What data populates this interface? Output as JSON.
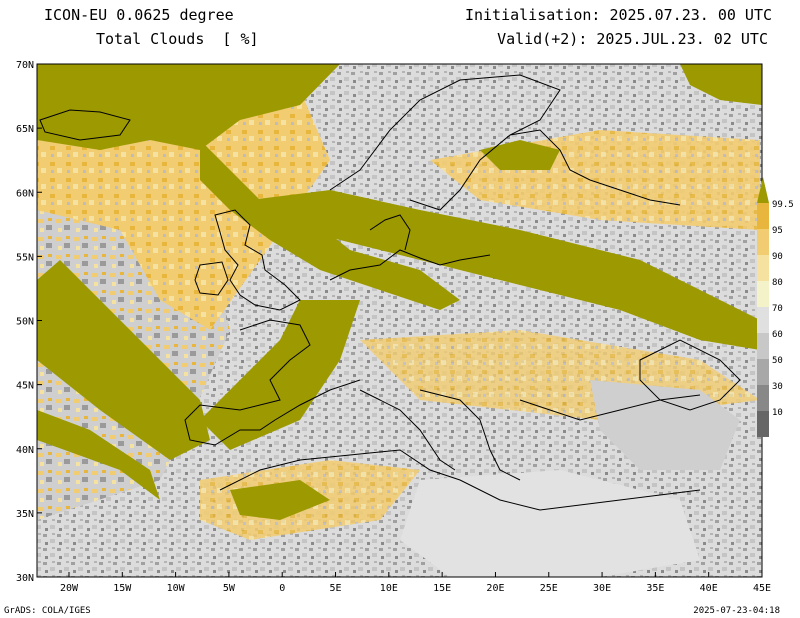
{
  "header": {
    "model": "ICON-EU 0.0625 degree",
    "variable": "Total Clouds  [ %]",
    "initialisation": "Initialisation: 2025.07.23. 00 UTC",
    "valid": "Valid(+2): 2025.JUL.23. 02 UTC"
  },
  "footer": {
    "software": "GrADS: COLA/IGES",
    "timestamp": "2025-07-23-04:18"
  },
  "map": {
    "lat_labels": [
      "70N",
      "65N",
      "60N",
      "55N",
      "50N",
      "45N",
      "40N",
      "35N",
      "30N"
    ],
    "lon_labels": [
      "20W",
      "15W",
      "10W",
      "5W",
      "0",
      "5E",
      "10E",
      "15E",
      "20E",
      "25E",
      "30E",
      "35E",
      "40E",
      "45E"
    ],
    "lat_range": [
      30,
      70
    ],
    "lon_range": [
      -23,
      45
    ]
  },
  "legend": {
    "levels": [
      "99.5",
      "95",
      "90",
      "80",
      "70",
      "60",
      "50",
      "30",
      "10"
    ],
    "colors": [
      "#9c9a00",
      "#e8b63c",
      "#f2cc70",
      "#f6e2a0",
      "#f4f2c8",
      "#e0e0e0",
      "#c8c8c8",
      "#a8a8a8",
      "#888888",
      "#666666"
    ]
  }
}
